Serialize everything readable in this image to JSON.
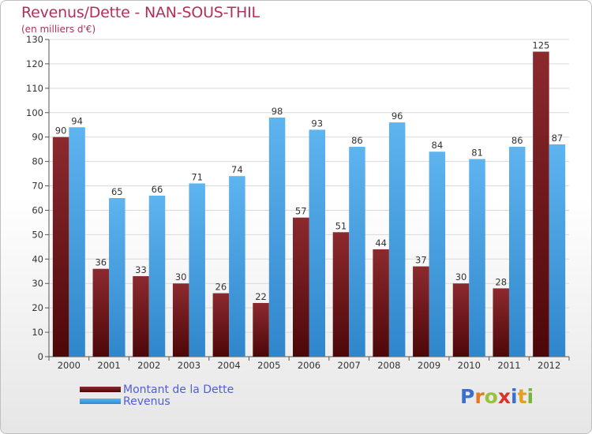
{
  "title": "Revenus/Dette - NAN-SOUS-THIL",
  "subtitle": "(en milliers d'€)",
  "logo": {
    "text": "Proxiti",
    "letters": [
      {
        "ch": "P",
        "color": "#3a6fd0"
      },
      {
        "ch": "r",
        "color": "#e07b22"
      },
      {
        "ch": "o",
        "color": "#9ac13c"
      },
      {
        "ch": "x",
        "color": "#d8342c"
      },
      {
        "ch": "i",
        "color": "#3a6fd0"
      },
      {
        "ch": "t",
        "color": "#e0a21c"
      },
      {
        "ch": "i",
        "color": "#7bb23a"
      }
    ]
  },
  "chart_data": {
    "type": "bar",
    "categories": [
      "2000",
      "2001",
      "2002",
      "2003",
      "2004",
      "2005",
      "2006",
      "2007",
      "2008",
      "2009",
      "2010",
      "2011",
      "2012"
    ],
    "series": [
      {
        "name": "Montant de la Dette",
        "color": "#7a1f22",
        "values": [
          90,
          36,
          33,
          30,
          26,
          22,
          57,
          51,
          44,
          37,
          30,
          28,
          125
        ]
      },
      {
        "name": "Revenus",
        "color": "#4ea6e6",
        "values": [
          94,
          65,
          66,
          71,
          74,
          98,
          93,
          86,
          96,
          84,
          81,
          86,
          87
        ]
      }
    ],
    "title": "Revenus/Dette - NAN-SOUS-THIL",
    "ylabel": "",
    "xlabel": "",
    "ylim": [
      0,
      130
    ],
    "yticks": [
      0,
      10,
      20,
      30,
      40,
      50,
      60,
      70,
      80,
      90,
      100,
      110,
      120,
      130
    ],
    "grid": true,
    "legend": "bottom-left"
  }
}
